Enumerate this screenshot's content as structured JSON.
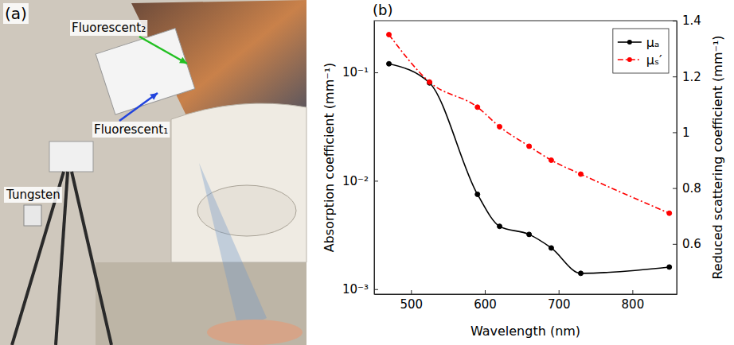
{
  "photo_panel": {
    "letter": "(a)",
    "labels": [
      "Fluorescent₂",
      "Fluorescent₁",
      "Tungsten"
    ]
  },
  "chart_data": {
    "type": "line",
    "panel_label": "(b)",
    "x_label": "Wavelength  (nm)",
    "y_label": "Absorption coefficient  (mm⁻¹)",
    "y2_label": "Reduced scattering coefficient (mm⁻¹)",
    "x": [
      470,
      525,
      590,
      620,
      660,
      690,
      730,
      850
    ],
    "series": [
      {
        "name": "μₐ",
        "color": "#000000",
        "marker": "circle",
        "line_style": "solid",
        "values": [
          0.12,
          0.08,
          0.0075,
          0.0038,
          0.0032,
          0.0024,
          0.0014,
          0.0016
        ]
      },
      {
        "name": "μₛ′",
        "color": "#ff0000",
        "marker": "circle",
        "line_style": "dash-dot",
        "axis": "y2",
        "values": [
          1.35,
          1.18,
          1.09,
          1.02,
          0.95,
          0.9,
          0.85,
          0.71
        ]
      }
    ],
    "xlim": [
      450,
      860
    ],
    "xticks": [
      500,
      600,
      700,
      800
    ],
    "ylim": [
      0.0009,
      0.3
    ],
    "yticks": [
      {
        "value": 0.001,
        "label": "10⁻³"
      },
      {
        "value": 0.01,
        "label": "10⁻²"
      },
      {
        "value": 0.1,
        "label": "10⁻¹"
      }
    ],
    "y2lim": [
      0.42,
      1.4
    ],
    "y2ticks": [
      0.6,
      0.8,
      1,
      1.2,
      1.4
    ],
    "log": "y",
    "grid": false,
    "legend": "upper right"
  }
}
